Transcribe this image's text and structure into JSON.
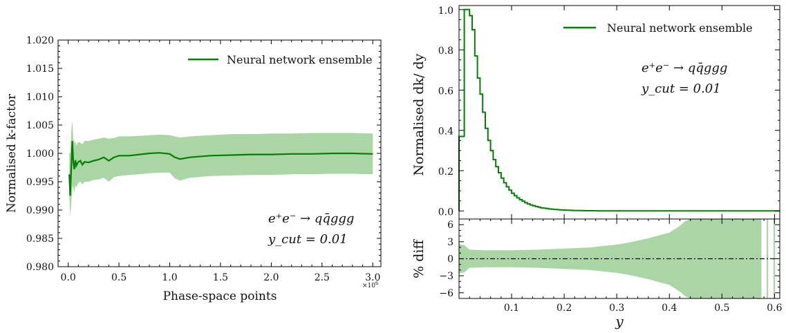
{
  "chart_data": [
    {
      "type": "line",
      "panel": "left",
      "xlabel": "Phase-space points",
      "ylabel": "Normalised k-factor",
      "x_multiplier_label": "×10",
      "x_multiplier_exp": "6",
      "xlim": [
        -0.1,
        3.08
      ],
      "ylim": [
        0.98,
        1.02
      ],
      "xticks": [
        0.0,
        0.5,
        1.0,
        1.5,
        2.0,
        2.5,
        3.0
      ],
      "xtick_labels": [
        "0.0",
        "0.5",
        "1.0",
        "1.5",
        "2.0",
        "2.5",
        "3.0"
      ],
      "yticks": [
        0.98,
        0.985,
        0.99,
        0.995,
        1.0,
        1.005,
        1.01,
        1.015,
        1.02
      ],
      "ytick_labels": [
        "0.980",
        "0.985",
        "0.990",
        "0.995",
        "1.000",
        "1.005",
        "1.010",
        "1.015",
        "1.020"
      ],
      "legend": {
        "label": "Neural network ensemble",
        "placement": "top-right",
        "color": "#008000"
      },
      "annotation": {
        "process": "e⁺e⁻ → qq̄ggg",
        "cut": "y_cut = 0.01"
      },
      "series": [
        {
          "name": "Neural network ensemble",
          "color": "#008000",
          "x": [
            0.01,
            0.02,
            0.03,
            0.04,
            0.05,
            0.06,
            0.07,
            0.08,
            0.09,
            0.1,
            0.12,
            0.14,
            0.16,
            0.2,
            0.25,
            0.3,
            0.35,
            0.4,
            0.45,
            0.5,
            0.6,
            0.7,
            0.8,
            0.9,
            1.0,
            1.05,
            1.1,
            1.2,
            1.4,
            1.6,
            1.8,
            2.0,
            2.2,
            2.4,
            2.6,
            2.8,
            3.0
          ],
          "y": [
            0.9963,
            0.9925,
            0.9975,
            1.0022,
            0.9985,
            0.9972,
            0.9988,
            0.9978,
            0.9982,
            0.9985,
            0.9987,
            0.998,
            0.9985,
            0.9984,
            0.9987,
            0.9989,
            0.9993,
            0.9987,
            0.9993,
            0.9996,
            0.9996,
            0.9998,
            1.0,
            1.0001,
            0.9999,
            0.9993,
            0.999,
            0.9993,
            0.9996,
            0.9997,
            0.9998,
            0.9998,
            0.9999,
            0.9999,
            1.0,
            1.0,
            0.9999
          ],
          "band_upper": [
            1.0002,
            1.0,
            1.0039,
            1.0058,
            1.0025,
            1.0018,
            1.0022,
            1.0013,
            1.0018,
            1.002,
            1.0019,
            1.0016,
            1.0022,
            1.0022,
            1.0024,
            1.0026,
            1.0028,
            1.0026,
            1.0027,
            1.003,
            1.003,
            1.0031,
            1.0032,
            1.0033,
            1.0032,
            1.003,
            1.0028,
            1.003,
            1.0032,
            1.0034,
            1.0034,
            1.0035,
            1.0035,
            1.0036,
            1.0036,
            1.0036,
            1.0035
          ],
          "band_lower": [
            0.9925,
            0.9888,
            0.9911,
            0.9942,
            0.994,
            0.993,
            0.9944,
            0.994,
            0.9944,
            0.9948,
            0.995,
            0.9945,
            0.995,
            0.995,
            0.9953,
            0.9954,
            0.9957,
            0.995,
            0.9958,
            0.996,
            0.9962,
            0.9963,
            0.9965,
            0.9966,
            0.9966,
            0.9956,
            0.9952,
            0.9957,
            0.996,
            0.9961,
            0.9962,
            0.9962,
            0.9963,
            0.9963,
            0.9964,
            0.9964,
            0.9963
          ]
        }
      ]
    },
    {
      "type": "line",
      "panel": "right-top",
      "step": true,
      "xlabel": "y",
      "ylabel": "Normalised dk/ dy",
      "xlim": [
        0.0,
        0.61
      ],
      "ylim": [
        -0.04,
        1.02
      ],
      "xticks": [
        0.1,
        0.2,
        0.3,
        0.4,
        0.5,
        0.6
      ],
      "xtick_labels": [
        "0.1",
        "0.2",
        "0.3",
        "0.4",
        "0.5",
        "0.6"
      ],
      "yticks": [
        0.0,
        0.2,
        0.4,
        0.6,
        0.8,
        1.0
      ],
      "ytick_labels": [
        "0.0",
        "0.2",
        "0.4",
        "0.6",
        "0.8",
        "1.0"
      ],
      "legend": {
        "label": "Neural network ensemble",
        "placement": "top-right",
        "color": "#008000"
      },
      "annotation": {
        "process": "e⁺e⁻ → qq̄ggg",
        "cut": "y_cut = 0.01"
      },
      "series": [
        {
          "name": "Neural network ensemble",
          "color": "#008000",
          "bin_width": 0.005,
          "x_start": 0.0,
          "values": [
            0.37,
            0.37,
            1.0,
            1.0,
            0.97,
            0.9,
            0.77,
            0.66,
            0.58,
            0.49,
            0.41,
            0.35,
            0.3,
            0.255,
            0.22,
            0.19,
            0.163,
            0.14,
            0.12,
            0.103,
            0.088,
            0.076,
            0.065,
            0.056,
            0.048,
            0.041,
            0.035,
            0.03,
            0.026,
            0.022,
            0.019,
            0.016,
            0.014,
            0.012,
            0.01,
            0.0088,
            0.0076,
            0.0066,
            0.0057,
            0.0049,
            0.0042,
            0.0036,
            0.0031,
            0.0027,
            0.0023,
            0.002,
            0.0017,
            0.0015,
            0.0013,
            0.0011,
            0.001,
            0.0008,
            0.0007,
            0.0006,
            0.0005,
            0.0004,
            0.0003,
            0.0003,
            0.0002,
            0.0002,
            0.0002,
            0.0001,
            0.0001,
            0.0001,
            0.0001,
            0.0001,
            0.0,
            0.0,
            0.0,
            0.0,
            0.0,
            0.0,
            0.0,
            0.0,
            0.0,
            0.0,
            0.0,
            0.0,
            0.0,
            0.0,
            0.0,
            0.0,
            0.0,
            0.0,
            0.0,
            0.0,
            0.0,
            0.0,
            0.0,
            0.0,
            0.0,
            0.0,
            0.0,
            0.0,
            0.0,
            0.0,
            0.0,
            0.0,
            0.0,
            0.0,
            0.0,
            0.0,
            0.0,
            0.0,
            0.0,
            0.0,
            0.0,
            0.0,
            0.0,
            0.0,
            0.0,
            0.0,
            0.0,
            0.0,
            0.0,
            0.0,
            0.0,
            0.0,
            0.0,
            0.0,
            0.0,
            0.0
          ]
        }
      ]
    },
    {
      "type": "area",
      "panel": "right-bottom",
      "xlabel": "y",
      "ylabel": "% diff",
      "xlim": [
        0.0,
        0.61
      ],
      "ylim": [
        -7,
        7
      ],
      "xticks": [
        0.1,
        0.2,
        0.3,
        0.4,
        0.5,
        0.6
      ],
      "xtick_labels": [
        "0.1",
        "0.2",
        "0.3",
        "0.4",
        "0.5",
        "0.6"
      ],
      "yticks": [
        -6,
        -3,
        0,
        3,
        6
      ],
      "ytick_labels": [
        "−6",
        "−3",
        "0",
        "3",
        "6"
      ],
      "reference_line": 0,
      "series": [
        {
          "color": "#008000",
          "x": [
            0.0,
            0.01,
            0.02,
            0.05,
            0.1,
            0.15,
            0.2,
            0.25,
            0.28,
            0.3,
            0.32,
            0.34,
            0.36,
            0.38,
            0.4,
            0.41,
            0.42,
            0.43,
            0.44,
            0.45,
            0.46,
            0.48,
            0.5,
            0.52,
            0.55,
            0.575
          ],
          "band_upper": [
            2.6,
            2.4,
            1.6,
            1.5,
            1.5,
            1.6,
            1.8,
            2.0,
            2.3,
            2.5,
            2.8,
            3.2,
            3.6,
            4.1,
            4.6,
            5.2,
            5.8,
            6.6,
            7.0,
            7.0,
            7.0,
            7.0,
            7.0,
            7.0,
            7.0,
            7.0
          ],
          "band_lower": [
            -2.6,
            -2.4,
            -1.6,
            -1.5,
            -1.5,
            -1.6,
            -1.8,
            -2.0,
            -2.3,
            -2.5,
            -2.8,
            -3.2,
            -3.6,
            -4.1,
            -4.6,
            -5.2,
            -5.8,
            -6.6,
            -7.0,
            -7.0,
            -7.0,
            -7.0,
            -7.0,
            -7.0,
            -7.0,
            -7.0
          ]
        }
      ],
      "extra_bands": [
        {
          "x0": 0.585,
          "x1": 0.588,
          "lower": -7.0,
          "upper": 7.0
        },
        {
          "x0": 0.598,
          "x1": 0.601,
          "lower": -7.0,
          "upper": 7.0
        }
      ]
    }
  ],
  "colors": {
    "line": "#008000",
    "band": "#a9d6a4",
    "reference": "#000000"
  }
}
